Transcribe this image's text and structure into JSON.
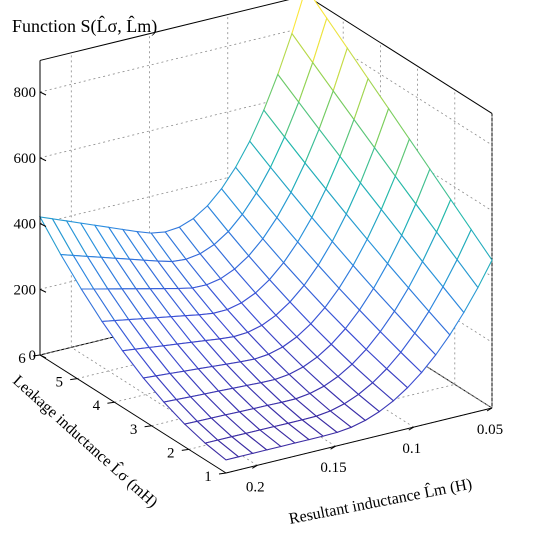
{
  "chart_data": {
    "type": "surface",
    "title": "Function S(L̂σ, L̂m)",
    "xlabel": "Resultant inductance L̂m (H)",
    "ylabel": "Leakage inductance L̂σ (mH)",
    "zlabel": "",
    "x_ticks": [
      "0.05",
      "0.1",
      "0.15",
      "0.2"
    ],
    "y_ticks": [
      "1",
      "2",
      "3",
      "4",
      "5",
      "6"
    ],
    "z_ticks": [
      "0",
      "200",
      "400",
      "600",
      "800"
    ],
    "xlim": [
      0.05,
      0.22
    ],
    "ylim": [
      1,
      6
    ],
    "zlim": [
      0,
      800
    ],
    "grid": true,
    "colormap": [
      "#3b1f8f",
      "#3d4fd6",
      "#2c8fe0",
      "#20b8b0",
      "#7fcf5a",
      "#fbe63a"
    ],
    "corner_values": {
      "x0.05_y1": 580,
      "x0.05_y6": 830,
      "x0.22_y1": 20,
      "x0.22_y6": 420
    },
    "surface_rows_note": "S values sampled on 20x10 grid",
    "x_grid": [
      0.05,
      0.059,
      0.068,
      0.077,
      0.086,
      0.095,
      0.104,
      0.113,
      0.122,
      0.131,
      0.14,
      0.149,
      0.158,
      0.167,
      0.176,
      0.185,
      0.194,
      0.203,
      0.212,
      0.22
    ],
    "y_grid": [
      1,
      1.56,
      2.11,
      2.67,
      3.22,
      3.78,
      4.33,
      4.89,
      5.44,
      6
    ]
  }
}
